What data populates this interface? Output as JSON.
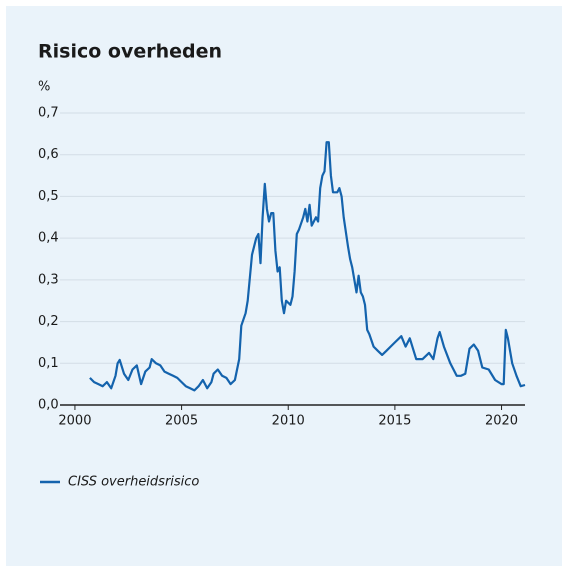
{
  "chart_data": {
    "type": "line",
    "title": "Risico overheden",
    "y_label": "%",
    "xlim": [
      1999.3,
      2021.1
    ],
    "xticks": [
      2000,
      2005,
      2010,
      2015,
      2020
    ],
    "ylim": [
      0,
      0.7
    ],
    "yticks": [
      {
        "value": 0,
        "label": "0,0"
      },
      {
        "value": 0.1,
        "label": "0,1"
      },
      {
        "value": 0.2,
        "label": "0,2"
      },
      {
        "value": 0.3,
        "label": "0,3"
      },
      {
        "value": 0.4,
        "label": "0,4"
      },
      {
        "value": 0.5,
        "label": "0,5"
      },
      {
        "value": 0.6,
        "label": "0,6"
      },
      {
        "value": 0.7,
        "label": "0,7"
      }
    ],
    "grid": true,
    "legend": "bottom-left",
    "series": [
      {
        "name": "CISS overheidsrisico",
        "color": "#1463ad",
        "x": [
          2000.7,
          2000.9,
          2001.1,
          2001.3,
          2001.5,
          2001.7,
          2001.9,
          2002.0,
          2002.1,
          2002.3,
          2002.5,
          2002.7,
          2002.9,
          2003.1,
          2003.3,
          2003.5,
          2003.6,
          2003.8,
          2004.0,
          2004.2,
          2004.4,
          2004.6,
          2004.8,
          2005.0,
          2005.2,
          2005.4,
          2005.6,
          2005.8,
          2006.0,
          2006.2,
          2006.4,
          2006.5,
          2006.7,
          2006.9,
          2007.1,
          2007.3,
          2007.5,
          2007.7,
          2007.8,
          2008.0,
          2008.1,
          2008.3,
          2008.5,
          2008.6,
          2008.7,
          2008.8,
          2008.9,
          2009.0,
          2009.1,
          2009.2,
          2009.3,
          2009.4,
          2009.5,
          2009.6,
          2009.7,
          2009.8,
          2009.9,
          2010.1,
          2010.2,
          2010.3,
          2010.4,
          2010.5,
          2010.7,
          2010.8,
          2010.9,
          2011.0,
          2011.1,
          2011.3,
          2011.4,
          2011.5,
          2011.6,
          2011.7,
          2011.8,
          2011.9,
          2012.0,
          2012.1,
          2012.3,
          2012.4,
          2012.5,
          2012.6,
          2012.8,
          2012.9,
          2013.0,
          2013.2,
          2013.3,
          2013.4,
          2013.5,
          2013.6,
          2013.7,
          2013.8,
          2014.0,
          2014.2,
          2014.4,
          2014.6,
          2014.8,
          2015.0,
          2015.3,
          2015.5,
          2015.7,
          2016.0,
          2016.3,
          2016.6,
          2016.8,
          2017.0,
          2017.1,
          2017.3,
          2017.6,
          2017.9,
          2018.1,
          2018.3,
          2018.5,
          2018.7,
          2018.9,
          2019.1,
          2019.4,
          2019.7,
          2020.0,
          2020.1,
          2020.2,
          2020.3,
          2020.5,
          2020.7,
          2020.9,
          2021.1
        ],
        "values": [
          0.065,
          0.055,
          0.05,
          0.045,
          0.055,
          0.04,
          0.07,
          0.1,
          0.108,
          0.075,
          0.06,
          0.085,
          0.095,
          0.05,
          0.08,
          0.09,
          0.11,
          0.1,
          0.095,
          0.08,
          0.075,
          0.07,
          0.065,
          0.055,
          0.045,
          0.04,
          0.035,
          0.045,
          0.06,
          0.04,
          0.055,
          0.075,
          0.085,
          0.07,
          0.065,
          0.05,
          0.06,
          0.11,
          0.19,
          0.22,
          0.25,
          0.36,
          0.4,
          0.41,
          0.34,
          0.45,
          0.53,
          0.47,
          0.44,
          0.46,
          0.46,
          0.37,
          0.32,
          0.33,
          0.25,
          0.22,
          0.25,
          0.24,
          0.26,
          0.32,
          0.41,
          0.42,
          0.45,
          0.47,
          0.44,
          0.48,
          0.43,
          0.45,
          0.44,
          0.52,
          0.55,
          0.56,
          0.63,
          0.63,
          0.55,
          0.51,
          0.51,
          0.52,
          0.5,
          0.45,
          0.38,
          0.35,
          0.33,
          0.27,
          0.31,
          0.27,
          0.26,
          0.24,
          0.18,
          0.17,
          0.14,
          0.13,
          0.12,
          0.13,
          0.14,
          0.15,
          0.165,
          0.14,
          0.16,
          0.11,
          0.11,
          0.125,
          0.11,
          0.16,
          0.175,
          0.14,
          0.1,
          0.07,
          0.07,
          0.075,
          0.135,
          0.145,
          0.13,
          0.09,
          0.085,
          0.06,
          0.05,
          0.05,
          0.18,
          0.16,
          0.1,
          0.07,
          0.045,
          0.048
        ]
      }
    ]
  }
}
